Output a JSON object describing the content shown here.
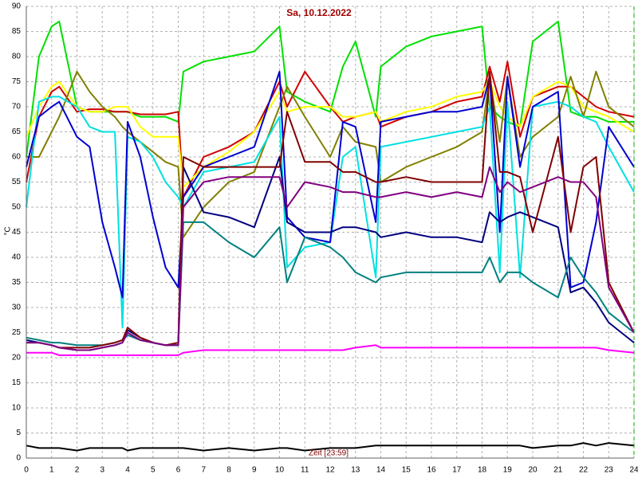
{
  "chart_data": {
    "type": "line",
    "title": "Sa, 10.12.2022",
    "ylabel": "°C",
    "xlabel": "Zeit [23:59]",
    "x": [
      0,
      0.5,
      1,
      1.3,
      2,
      2.5,
      3,
      3.5,
      3.8,
      4,
      4.5,
      5,
      5.5,
      6,
      6.2,
      7,
      8,
      9,
      10,
      10.3,
      11,
      12,
      12.5,
      13,
      13.8,
      14,
      15,
      16,
      17,
      18,
      18.3,
      18.7,
      19,
      19.5,
      20,
      21,
      21.5,
      22,
      22.5,
      23,
      24
    ],
    "xlim": [
      0,
      24
    ],
    "xticks": [
      0,
      1,
      2,
      3,
      4,
      5,
      6,
      7,
      8,
      9,
      10,
      11,
      12,
      13,
      14,
      15,
      16,
      17,
      18,
      19,
      20,
      21,
      22,
      23,
      24
    ],
    "ylim": [
      0,
      90
    ],
    "yticks": [
      0,
      5,
      10,
      15,
      20,
      25,
      30,
      35,
      40,
      45,
      50,
      55,
      60,
      65,
      70,
      75,
      80,
      85,
      90
    ],
    "grid": true,
    "series": [
      {
        "color": "#00e000",
        "values": [
          60,
          80,
          86,
          87,
          70,
          69,
          69,
          69,
          69,
          69,
          68,
          68,
          68,
          67,
          77,
          79,
          80,
          81,
          86,
          73,
          71,
          69,
          78,
          83,
          68,
          78,
          82,
          84,
          85,
          86,
          70,
          68,
          67,
          66,
          83,
          87,
          69,
          68,
          68,
          67,
          67
        ]
      },
      {
        "color": "#d00000",
        "values": [
          55,
          68,
          73,
          74,
          69,
          69.5,
          69.5,
          69,
          69,
          69,
          68.5,
          68.5,
          68.5,
          69,
          52,
          60,
          62,
          65,
          75,
          70,
          77,
          70,
          67,
          68,
          69,
          66,
          68,
          69,
          71,
          72,
          78,
          71,
          79,
          64,
          72,
          74,
          74,
          72,
          70,
          69,
          68
        ]
      },
      {
        "color": "#ffff00",
        "values": [
          64,
          70,
          74,
          75,
          70,
          69,
          69,
          70,
          70,
          70,
          66,
          64,
          64,
          64,
          54,
          58,
          61,
          65,
          73,
          69,
          70,
          70,
          68,
          68,
          69,
          67,
          69,
          70,
          72,
          73,
          75,
          70,
          68,
          66,
          72,
          75,
          74,
          70,
          69,
          68,
          65
        ]
      },
      {
        "color": "#808000",
        "values": [
          60,
          60,
          65,
          68,
          77,
          73,
          70,
          68,
          66,
          65,
          63,
          61,
          59,
          58,
          44,
          50,
          55,
          57,
          70,
          74,
          68,
          60,
          66,
          63,
          62,
          55,
          58,
          60,
          62,
          65,
          76,
          63,
          76,
          60,
          64,
          68,
          76,
          68,
          77,
          70,
          66
        ]
      },
      {
        "color": "#00e0e0",
        "values": [
          50,
          71,
          72,
          72,
          70,
          66,
          65,
          65,
          26,
          64,
          63,
          60,
          55,
          52,
          50,
          57,
          58,
          59,
          68,
          38,
          42,
          43,
          60,
          62,
          36,
          62,
          63,
          64,
          65,
          66,
          70,
          37,
          71,
          36,
          70,
          71,
          70,
          68,
          67,
          62,
          53
        ]
      },
      {
        "color": "#0000d0",
        "values": [
          58,
          68,
          70,
          71,
          64,
          62,
          47,
          38,
          32,
          67,
          60,
          48,
          38,
          34,
          52,
          58,
          60,
          62,
          77,
          48,
          44,
          43,
          67,
          66,
          47,
          67,
          68,
          69,
          69,
          70,
          76,
          45,
          76,
          58,
          70,
          73,
          34,
          35,
          47,
          66,
          58
        ]
      },
      {
        "color": "#000080",
        "values": [
          23.5,
          23,
          22.5,
          22,
          21.5,
          21.5,
          22,
          22.5,
          23,
          25.5,
          24,
          23,
          22.5,
          22.5,
          58,
          49,
          48,
          46,
          60,
          47,
          45,
          45,
          46,
          46,
          45,
          44,
          45,
          44,
          44,
          43,
          49,
          47,
          48,
          49,
          48,
          46,
          33,
          34,
          31,
          27,
          23
        ]
      },
      {
        "color": "#008080",
        "values": [
          24,
          23.5,
          23,
          23,
          22.5,
          22.5,
          22.5,
          23,
          23.5,
          24.5,
          23.5,
          23,
          22.5,
          22.5,
          47,
          47,
          43,
          40,
          46,
          35,
          44,
          42,
          40,
          37,
          35,
          36,
          37,
          37,
          37,
          37,
          40,
          35,
          37,
          37,
          35,
          32,
          40,
          36,
          33,
          29,
          25
        ]
      },
      {
        "color": "#800000",
        "values": [
          23,
          23,
          22.5,
          22,
          22,
          22,
          22.5,
          23,
          23.5,
          26,
          24,
          23,
          22.5,
          23,
          60,
          58,
          58,
          58,
          58,
          69,
          59,
          59,
          57,
          57,
          55,
          55,
          56,
          55,
          55,
          55,
          77,
          57,
          57,
          56,
          45,
          64,
          45,
          58,
          60,
          35,
          25
        ]
      },
      {
        "color": "#800080",
        "values": [
          23,
          23,
          22.5,
          22,
          21.5,
          21.5,
          22,
          22.5,
          23,
          25,
          23.5,
          23,
          22.5,
          22.5,
          50,
          55,
          56,
          56,
          56,
          50,
          55,
          54,
          53,
          53,
          52,
          52,
          53,
          52,
          53,
          52,
          58,
          53,
          55,
          53,
          54,
          56,
          55,
          55,
          52,
          34,
          25
        ]
      },
      {
        "color": "#ff00ff",
        "values": [
          21,
          21,
          21,
          20.5,
          20.5,
          20.5,
          20.5,
          20.5,
          20.5,
          20.5,
          20.5,
          20.5,
          20.5,
          20.5,
          21,
          21.5,
          21.5,
          21.5,
          21.5,
          21.5,
          21.5,
          21.5,
          21.5,
          22,
          22.5,
          22,
          22,
          22,
          22,
          22,
          22,
          22,
          22,
          22,
          22,
          22,
          22,
          22,
          22,
          21.5,
          21
        ]
      },
      {
        "color": "#000000",
        "values": [
          2.5,
          2,
          2,
          2,
          1.5,
          2,
          2,
          2,
          2,
          1.5,
          2,
          2,
          2,
          2,
          2,
          1.5,
          2,
          1.5,
          2,
          2,
          1.5,
          2,
          2,
          2,
          2.5,
          2.5,
          2.5,
          2.5,
          2.5,
          2.5,
          2.5,
          2.5,
          2.5,
          2.5,
          2,
          2.5,
          2.5,
          3,
          2.5,
          3,
          2.5
        ]
      }
    ]
  }
}
